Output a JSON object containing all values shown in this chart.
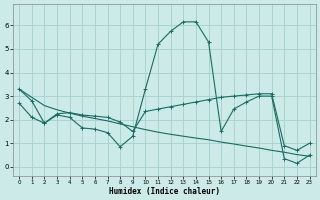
{
  "xlabel": "Humidex (Indice chaleur)",
  "bg_color": "#cceae7",
  "grid_color": "#aad3cf",
  "line_color": "#1a6b62",
  "xlim": [
    -0.5,
    23.5
  ],
  "ylim": [
    -0.4,
    6.9
  ],
  "xticks": [
    0,
    1,
    2,
    3,
    4,
    5,
    6,
    7,
    8,
    9,
    10,
    11,
    12,
    13,
    14,
    15,
    16,
    17,
    18,
    19,
    20,
    21,
    22,
    23
  ],
  "yticks": [
    0,
    1,
    2,
    3,
    4,
    5,
    6
  ],
  "line1_x": [
    0,
    1,
    2,
    3,
    4,
    5,
    6,
    7,
    8,
    9,
    10,
    11,
    12,
    13,
    14,
    15,
    16,
    17,
    18,
    19,
    20,
    21,
    22,
    23
  ],
  "line1_y": [
    3.3,
    2.8,
    1.85,
    2.2,
    2.1,
    1.65,
    1.6,
    1.45,
    0.85,
    1.3,
    3.3,
    5.2,
    5.75,
    6.15,
    6.15,
    5.3,
    1.5,
    2.45,
    2.75,
    3.0,
    3.0,
    0.35,
    0.15,
    0.5
  ],
  "line2_x": [
    0,
    1,
    2,
    3,
    4,
    5,
    6,
    7,
    8,
    9,
    10,
    11,
    12,
    13,
    14,
    15,
    16,
    17,
    18,
    19,
    20,
    21,
    22,
    23
  ],
  "line2_y": [
    2.7,
    2.1,
    1.85,
    2.25,
    2.3,
    2.2,
    2.15,
    2.1,
    1.9,
    1.5,
    2.35,
    2.45,
    2.55,
    2.65,
    2.75,
    2.85,
    2.95,
    3.0,
    3.05,
    3.1,
    3.1,
    0.9,
    0.7,
    1.0
  ],
  "line3_x": [
    0,
    1,
    2,
    3,
    4,
    5,
    6,
    7,
    8,
    9,
    10,
    11,
    12,
    13,
    14,
    15,
    16,
    17,
    18,
    19,
    20,
    21,
    22,
    23
  ],
  "line3_y": [
    3.3,
    2.95,
    2.6,
    2.42,
    2.28,
    2.15,
    2.05,
    1.95,
    1.82,
    1.7,
    1.58,
    1.47,
    1.38,
    1.3,
    1.22,
    1.15,
    1.05,
    0.97,
    0.88,
    0.8,
    0.7,
    0.62,
    0.52,
    0.45
  ]
}
